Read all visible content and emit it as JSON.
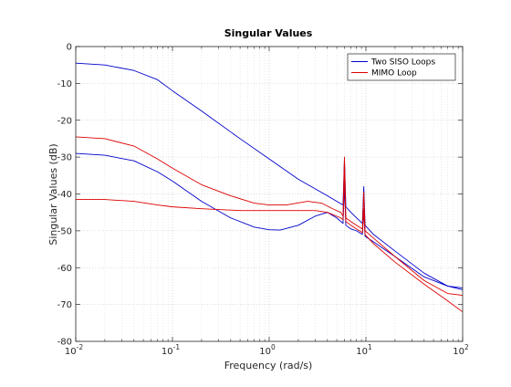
{
  "chart_data": {
    "type": "line",
    "title": "Singular Values",
    "xlabel": "Frequency (rad/s)",
    "ylabel": "Singular Values (dB)",
    "xscale": "log",
    "xlim": [
      0.01,
      100
    ],
    "ylim": [
      -80,
      0
    ],
    "grid": true,
    "legend_position": "top-right",
    "x_ticks": [
      {
        "value": 0.01,
        "base": "10",
        "exp": "-2"
      },
      {
        "value": 0.1,
        "base": "10",
        "exp": "-1"
      },
      {
        "value": 1,
        "base": "10",
        "exp": "0"
      },
      {
        "value": 10,
        "base": "10",
        "exp": "1"
      },
      {
        "value": 100,
        "base": "10",
        "exp": "2"
      }
    ],
    "y_ticks": [
      0,
      -10,
      -20,
      -30,
      -40,
      -50,
      -60,
      -70,
      -80
    ],
    "legend": [
      {
        "label": "Two SISO Loops",
        "color": "#0000cc"
      },
      {
        "label": "MIMO Loop",
        "color": "#dd0000"
      }
    ],
    "series": [
      {
        "group": "Two SISO Loops",
        "color": "#0000cc",
        "x": [
          0.01,
          0.02,
          0.04,
          0.07,
          0.1,
          0.2,
          0.5,
          1,
          2,
          4,
          5,
          5.8,
          6.0,
          6.2,
          7,
          8,
          9.2,
          9.5,
          9.8,
          12,
          20,
          40,
          70,
          100
        ],
        "y": [
          -4.5,
          -5,
          -6.5,
          -9,
          -12,
          -17.5,
          -25,
          -30.5,
          -36,
          -40.5,
          -42,
          -43,
          -30.5,
          -43.5,
          -45,
          -46.5,
          -48,
          -38,
          -48.5,
          -51,
          -55.5,
          -61.5,
          -65,
          -66
        ]
      },
      {
        "group": "Two SISO Loops",
        "color": "#0000cc",
        "x": [
          0.01,
          0.02,
          0.04,
          0.07,
          0.1,
          0.2,
          0.4,
          0.7,
          1,
          1.3,
          2,
          3,
          4,
          5,
          5.8,
          6.0,
          6.2,
          7,
          8,
          9.2,
          9.5,
          9.8,
          12,
          20,
          40,
          70,
          100
        ],
        "y": [
          -29,
          -29.5,
          -31,
          -34,
          -36.5,
          -42,
          -46.5,
          -49,
          -49.7,
          -49.8,
          -48.5,
          -46,
          -45,
          -46.5,
          -48,
          -38,
          -48.5,
          -49.5,
          -50,
          -51,
          -44.5,
          -51.5,
          -53,
          -57,
          -62.5,
          -65,
          -65.5
        ]
      },
      {
        "group": "MIMO Loop",
        "color": "#dd0000",
        "x": [
          0.01,
          0.02,
          0.04,
          0.07,
          0.1,
          0.2,
          0.4,
          0.7,
          1,
          1.5,
          2.5,
          3.5,
          4.5,
          5.5,
          5.8,
          6.0,
          6.2,
          7,
          8,
          9.2,
          9.5,
          9.8,
          12,
          20,
          40,
          70,
          100
        ],
        "y": [
          -24.5,
          -25,
          -27,
          -30.5,
          -33,
          -37.5,
          -40.5,
          -42.5,
          -43,
          -43,
          -42,
          -42.5,
          -44,
          -45,
          -46,
          -30,
          -46.5,
          -47.5,
          -48.5,
          -49.5,
          -39.5,
          -50,
          -52,
          -57,
          -63.5,
          -67,
          -67.5
        ]
      },
      {
        "group": "MIMO Loop",
        "color": "#dd0000",
        "x": [
          0.01,
          0.02,
          0.04,
          0.07,
          0.1,
          0.2,
          0.5,
          1,
          2,
          3,
          4,
          5.5,
          5.8,
          6.0,
          6.2,
          7,
          8,
          9.2,
          9.5,
          9.8,
          12,
          20,
          40,
          70,
          100
        ],
        "y": [
          -41.5,
          -41.5,
          -42,
          -43,
          -43.5,
          -44,
          -44.5,
          -44.5,
          -44.5,
          -44.5,
          -45,
          -46.5,
          -47,
          -35,
          -47.5,
          -48.5,
          -49.5,
          -50.5,
          -44,
          -51,
          -53.5,
          -58.5,
          -64.5,
          -69,
          -72
        ]
      }
    ]
  }
}
